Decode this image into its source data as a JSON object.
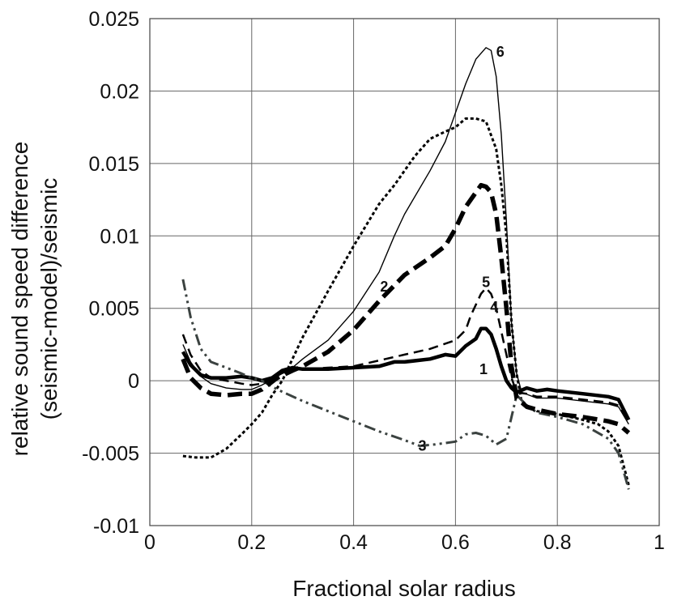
{
  "chart_data": {
    "type": "line",
    "xlabel": "Fractional solar radius",
    "ylabel_lines": [
      "relative sound speed difference",
      "(seismic-model)/seismic"
    ],
    "xlim": [
      0,
      1
    ],
    "ylim": [
      -0.01,
      0.025
    ],
    "x_ticks": [
      {
        "value": 0,
        "label": "0"
      },
      {
        "value": 0.2,
        "label": "0.2"
      },
      {
        "value": 0.4,
        "label": "0.4"
      },
      {
        "value": 0.6,
        "label": "0.6"
      },
      {
        "value": 0.8,
        "label": "0.8"
      },
      {
        "value": 1,
        "label": "1"
      }
    ],
    "y_ticks": [
      {
        "value": -0.01,
        "label": "-0.01"
      },
      {
        "value": -0.005,
        "label": "-0.005"
      },
      {
        "value": 0,
        "label": "0"
      },
      {
        "value": 0.005,
        "label": "0.005"
      },
      {
        "value": 0.01,
        "label": "0.01"
      },
      {
        "value": 0.015,
        "label": "0.015"
      },
      {
        "value": 0.02,
        "label": "0.02"
      },
      {
        "value": 0.025,
        "label": "0.025"
      }
    ],
    "grid": true,
    "legend": "none",
    "series": [
      {
        "label": "1",
        "color": "#000000",
        "style": "thick-solid",
        "label_at": [
          0.655,
          0.0008
        ],
        "points": [
          [
            0.065,
            0.002
          ],
          [
            0.08,
            0.0011
          ],
          [
            0.1,
            0.0004
          ],
          [
            0.12,
            0.0002
          ],
          [
            0.15,
            0.0002
          ],
          [
            0.18,
            0.0003
          ],
          [
            0.2,
            0.0002
          ],
          [
            0.22,
            0.0
          ],
          [
            0.24,
            0.0002
          ],
          [
            0.26,
            0.0007
          ],
          [
            0.28,
            0.0009
          ],
          [
            0.3,
            0.0008
          ],
          [
            0.35,
            0.0008
          ],
          [
            0.4,
            0.0009
          ],
          [
            0.45,
            0.001
          ],
          [
            0.48,
            0.0013
          ],
          [
            0.5,
            0.0013
          ],
          [
            0.55,
            0.0015
          ],
          [
            0.58,
            0.0018
          ],
          [
            0.6,
            0.0017
          ],
          [
            0.62,
            0.0024
          ],
          [
            0.64,
            0.0029
          ],
          [
            0.65,
            0.0036
          ],
          [
            0.66,
            0.0036
          ],
          [
            0.67,
            0.0032
          ],
          [
            0.68,
            0.0022
          ],
          [
            0.69,
            0.001
          ],
          [
            0.7,
            0.0
          ],
          [
            0.71,
            -0.0005
          ],
          [
            0.72,
            -0.0008
          ],
          [
            0.74,
            -0.0005
          ],
          [
            0.76,
            -0.0007
          ],
          [
            0.78,
            -0.0006
          ],
          [
            0.8,
            -0.0007
          ],
          [
            0.85,
            -0.0009
          ],
          [
            0.9,
            -0.0011
          ],
          [
            0.92,
            -0.0013
          ],
          [
            0.94,
            -0.0027
          ]
        ]
      },
      {
        "label": "2",
        "color": "#000000",
        "style": "dotted",
        "label_at": [
          0.46,
          0.0065
        ],
        "points": [
          [
            0.065,
            -0.0052
          ],
          [
            0.09,
            -0.0053
          ],
          [
            0.12,
            -0.0053
          ],
          [
            0.15,
            -0.0047
          ],
          [
            0.18,
            -0.0037
          ],
          [
            0.2,
            -0.003
          ],
          [
            0.22,
            -0.0022
          ],
          [
            0.24,
            -0.001
          ],
          [
            0.26,
            0.0
          ],
          [
            0.28,
            0.0015
          ],
          [
            0.3,
            0.003
          ],
          [
            0.35,
            0.0062
          ],
          [
            0.4,
            0.0093
          ],
          [
            0.45,
            0.0122
          ],
          [
            0.48,
            0.0135
          ],
          [
            0.5,
            0.0145
          ],
          [
            0.52,
            0.0155
          ],
          [
            0.55,
            0.0167
          ],
          [
            0.58,
            0.0172
          ],
          [
            0.6,
            0.0175
          ],
          [
            0.62,
            0.0181
          ],
          [
            0.64,
            0.0181
          ],
          [
            0.66,
            0.0179
          ],
          [
            0.68,
            0.016
          ],
          [
            0.69,
            0.0135
          ],
          [
            0.7,
            0.01
          ],
          [
            0.71,
            0.004
          ],
          [
            0.72,
            0.0005
          ],
          [
            0.73,
            -0.0015
          ],
          [
            0.76,
            -0.0021
          ],
          [
            0.8,
            -0.0023
          ],
          [
            0.85,
            -0.0027
          ],
          [
            0.88,
            -0.003
          ],
          [
            0.9,
            -0.0035
          ],
          [
            0.92,
            -0.0045
          ],
          [
            0.94,
            -0.0072
          ]
        ]
      },
      {
        "label": "3",
        "color": "#3b4240",
        "style": "dash-dot",
        "label_at": [
          0.535,
          -0.0045
        ],
        "points": [
          [
            0.065,
            0.007
          ],
          [
            0.08,
            0.0044
          ],
          [
            0.1,
            0.0022
          ],
          [
            0.12,
            0.0013
          ],
          [
            0.15,
            0.0009
          ],
          [
            0.18,
            0.0005
          ],
          [
            0.2,
            0.0002
          ],
          [
            0.22,
            0.0
          ],
          [
            0.25,
            -0.0006
          ],
          [
            0.3,
            -0.0014
          ],
          [
            0.35,
            -0.0021
          ],
          [
            0.4,
            -0.0028
          ],
          [
            0.45,
            -0.0035
          ],
          [
            0.5,
            -0.0041
          ],
          [
            0.53,
            -0.0045
          ],
          [
            0.56,
            -0.0044
          ],
          [
            0.58,
            -0.0043
          ],
          [
            0.6,
            -0.0042
          ],
          [
            0.62,
            -0.0037
          ],
          [
            0.64,
            -0.0036
          ],
          [
            0.66,
            -0.0038
          ],
          [
            0.68,
            -0.0044
          ],
          [
            0.7,
            -0.004
          ],
          [
            0.71,
            -0.0025
          ],
          [
            0.72,
            -0.001
          ],
          [
            0.74,
            -0.0017
          ],
          [
            0.76,
            -0.0022
          ],
          [
            0.8,
            -0.0025
          ],
          [
            0.85,
            -0.003
          ],
          [
            0.9,
            -0.004
          ],
          [
            0.92,
            -0.005
          ],
          [
            0.94,
            -0.0075
          ]
        ]
      },
      {
        "label": "4",
        "color": "#000000",
        "style": "thick-dashed",
        "label_at": [
          0.676,
          0.0051
        ],
        "points": [
          [
            0.065,
            0.0015
          ],
          [
            0.08,
            0.0002
          ],
          [
            0.1,
            -0.0005
          ],
          [
            0.12,
            -0.0009
          ],
          [
            0.15,
            -0.001
          ],
          [
            0.18,
            -0.0009
          ],
          [
            0.2,
            -0.0009
          ],
          [
            0.22,
            -0.0006
          ],
          [
            0.25,
            0.0002
          ],
          [
            0.28,
            0.0007
          ],
          [
            0.3,
            0.001
          ],
          [
            0.35,
            0.002
          ],
          [
            0.4,
            0.0035
          ],
          [
            0.45,
            0.0055
          ],
          [
            0.5,
            0.0073
          ],
          [
            0.55,
            0.0085
          ],
          [
            0.58,
            0.0093
          ],
          [
            0.6,
            0.0105
          ],
          [
            0.62,
            0.012
          ],
          [
            0.64,
            0.013
          ],
          [
            0.65,
            0.0135
          ],
          [
            0.66,
            0.0134
          ],
          [
            0.67,
            0.013
          ],
          [
            0.68,
            0.0115
          ],
          [
            0.69,
            0.0085
          ],
          [
            0.7,
            0.005
          ],
          [
            0.71,
            0.001
          ],
          [
            0.72,
            -0.0012
          ],
          [
            0.74,
            -0.0018
          ],
          [
            0.76,
            -0.002
          ],
          [
            0.8,
            -0.0023
          ],
          [
            0.85,
            -0.0025
          ],
          [
            0.9,
            -0.0028
          ],
          [
            0.92,
            -0.003
          ],
          [
            0.94,
            -0.0036
          ]
        ]
      },
      {
        "label": "5",
        "color": "#000000",
        "style": "dashed",
        "label_at": [
          0.66,
          0.0068
        ],
        "points": [
          [
            0.065,
            0.0032
          ],
          [
            0.08,
            0.0018
          ],
          [
            0.1,
            0.0007
          ],
          [
            0.12,
            0.0002
          ],
          [
            0.15,
            0.0
          ],
          [
            0.18,
            -0.0002
          ],
          [
            0.2,
            -0.0003
          ],
          [
            0.22,
            -0.0002
          ],
          [
            0.25,
            0.0004
          ],
          [
            0.28,
            0.0008
          ],
          [
            0.3,
            0.0008
          ],
          [
            0.35,
            0.0009
          ],
          [
            0.4,
            0.001
          ],
          [
            0.45,
            0.0014
          ],
          [
            0.5,
            0.0018
          ],
          [
            0.55,
            0.0022
          ],
          [
            0.6,
            0.0028
          ],
          [
            0.62,
            0.0035
          ],
          [
            0.63,
            0.0045
          ],
          [
            0.65,
            0.006
          ],
          [
            0.66,
            0.0064
          ],
          [
            0.67,
            0.006
          ],
          [
            0.68,
            0.005
          ],
          [
            0.69,
            0.0034
          ],
          [
            0.7,
            0.0018
          ],
          [
            0.71,
            0.0002
          ],
          [
            0.72,
            -0.0008
          ],
          [
            0.74,
            -0.0009
          ],
          [
            0.76,
            -0.0011
          ],
          [
            0.8,
            -0.0011
          ],
          [
            0.85,
            -0.0013
          ],
          [
            0.9,
            -0.0015
          ],
          [
            0.92,
            -0.0017
          ],
          [
            0.94,
            -0.0029
          ]
        ]
      },
      {
        "label": "6",
        "color": "#000000",
        "style": "thin-solid",
        "label_at": [
          0.688,
          0.0227
        ],
        "points": [
          [
            0.065,
            0.0025
          ],
          [
            0.08,
            0.0013
          ],
          [
            0.1,
            0.0003
          ],
          [
            0.12,
            -0.0002
          ],
          [
            0.15,
            -0.0005
          ],
          [
            0.18,
            -0.0006
          ],
          [
            0.2,
            -0.0006
          ],
          [
            0.22,
            -0.0003
          ],
          [
            0.25,
            0.0003
          ],
          [
            0.28,
            0.0009
          ],
          [
            0.3,
            0.0015
          ],
          [
            0.35,
            0.0028
          ],
          [
            0.4,
            0.0048
          ],
          [
            0.45,
            0.0075
          ],
          [
            0.48,
            0.01
          ],
          [
            0.5,
            0.0115
          ],
          [
            0.55,
            0.0145
          ],
          [
            0.58,
            0.0165
          ],
          [
            0.6,
            0.0185
          ],
          [
            0.62,
            0.0205
          ],
          [
            0.64,
            0.0222
          ],
          [
            0.66,
            0.023
          ],
          [
            0.67,
            0.0228
          ],
          [
            0.68,
            0.021
          ],
          [
            0.69,
            0.017
          ],
          [
            0.7,
            0.011
          ],
          [
            0.71,
            0.004
          ],
          [
            0.72,
            0.0005
          ],
          [
            0.73,
            -0.0008
          ],
          [
            0.76,
            -0.0012
          ],
          [
            0.8,
            -0.0012
          ],
          [
            0.85,
            -0.0014
          ],
          [
            0.9,
            -0.0016
          ],
          [
            0.92,
            -0.0018
          ],
          [
            0.94,
            -0.003
          ]
        ]
      }
    ]
  }
}
